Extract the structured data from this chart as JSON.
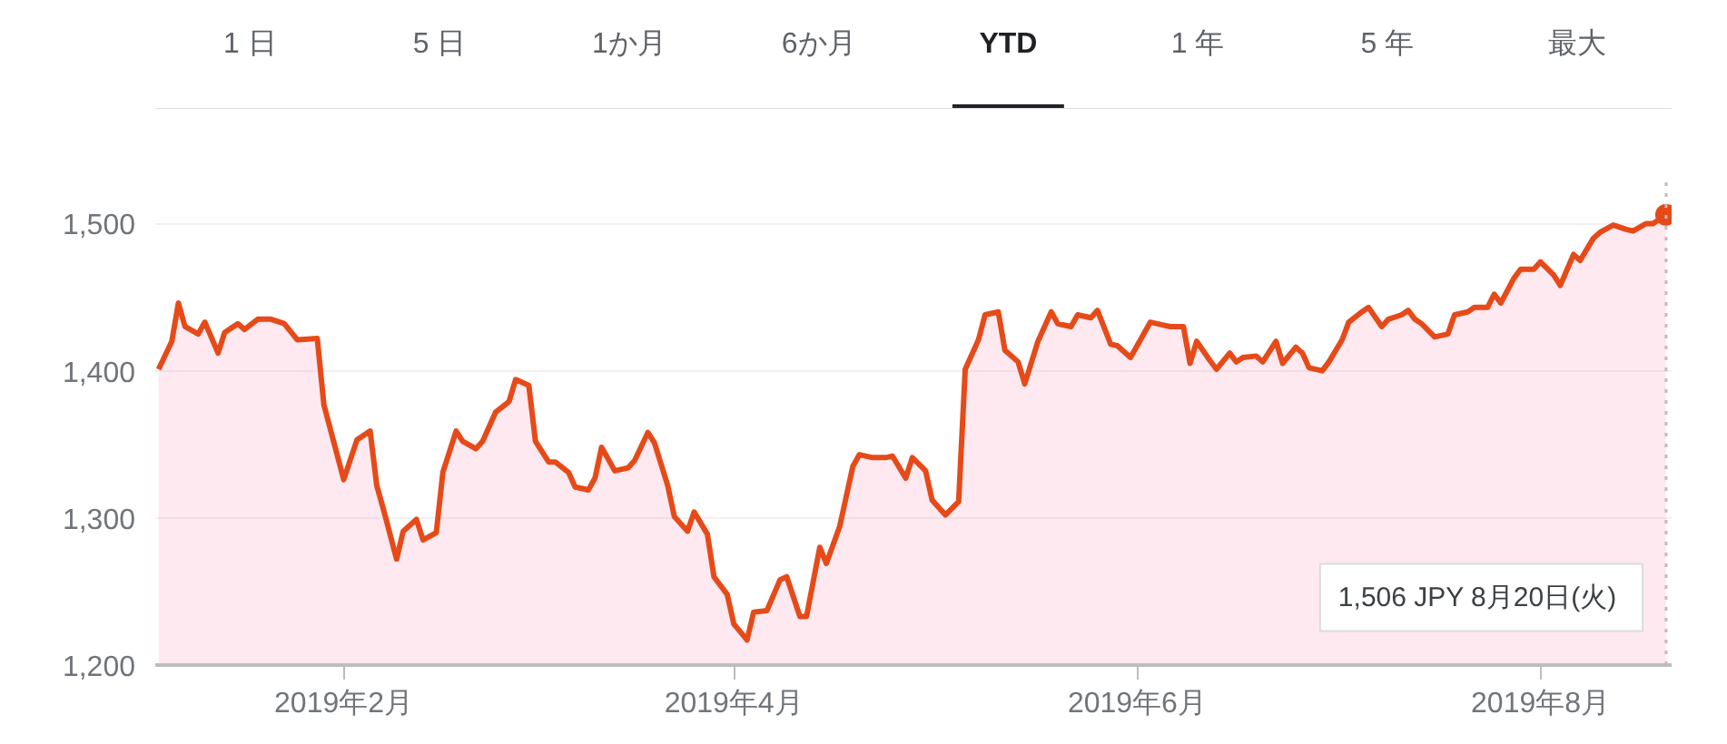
{
  "chart_data": {
    "type": "area",
    "x": [
      "2019-01-04",
      "2019-01-06",
      "2019-01-07",
      "2019-01-08",
      "2019-01-10",
      "2019-01-11",
      "2019-01-13",
      "2019-01-14",
      "2019-01-16",
      "2019-01-17",
      "2019-01-19",
      "2019-01-21",
      "2019-01-23",
      "2019-01-25",
      "2019-01-28",
      "2019-01-29",
      "2019-01-31",
      "2019-02-01",
      "2019-02-03",
      "2019-02-05",
      "2019-02-06",
      "2019-02-07",
      "2019-02-09",
      "2019-02-10",
      "2019-02-12",
      "2019-02-13",
      "2019-02-15",
      "2019-02-16",
      "2019-02-18",
      "2019-02-19",
      "2019-02-21",
      "2019-02-22",
      "2019-02-24",
      "2019-02-26",
      "2019-02-27",
      "2019-03-01",
      "2019-03-02",
      "2019-03-04",
      "2019-03-05",
      "2019-03-07",
      "2019-03-08",
      "2019-03-10",
      "2019-03-11",
      "2019-03-12",
      "2019-03-14",
      "2019-03-16",
      "2019-03-17",
      "2019-03-19",
      "2019-03-20",
      "2019-03-22",
      "2019-03-23",
      "2019-03-25",
      "2019-03-26",
      "2019-03-28",
      "2019-03-29",
      "2019-03-31",
      "2019-04-01",
      "2019-04-03",
      "2019-04-04",
      "2019-04-06",
      "2019-04-08",
      "2019-04-09",
      "2019-04-11",
      "2019-04-12",
      "2019-04-14",
      "2019-04-15",
      "2019-04-17",
      "2019-04-19",
      "2019-04-20",
      "2019-04-22",
      "2019-04-24",
      "2019-04-25",
      "2019-04-27",
      "2019-04-28",
      "2019-04-30",
      "2019-05-01",
      "2019-05-03",
      "2019-05-05",
      "2019-05-06",
      "2019-05-08",
      "2019-05-09",
      "2019-05-11",
      "2019-05-12",
      "2019-05-14",
      "2019-05-15",
      "2019-05-17",
      "2019-05-19",
      "2019-05-20",
      "2019-05-22",
      "2019-05-23",
      "2019-05-25",
      "2019-05-26",
      "2019-05-28",
      "2019-05-29",
      "2019-05-31",
      "2019-06-02",
      "2019-06-03",
      "2019-06-05",
      "2019-06-06",
      "2019-06-08",
      "2019-06-09",
      "2019-06-10",
      "2019-06-12",
      "2019-06-13",
      "2019-06-15",
      "2019-06-16",
      "2019-06-17",
      "2019-06-19",
      "2019-06-20",
      "2019-06-22",
      "2019-06-23",
      "2019-06-25",
      "2019-06-26",
      "2019-06-27",
      "2019-06-29",
      "2019-06-30",
      "2019-07-02",
      "2019-07-03",
      "2019-07-05",
      "2019-07-06",
      "2019-07-08",
      "2019-07-09",
      "2019-07-11",
      "2019-07-12",
      "2019-07-13",
      "2019-07-14",
      "2019-07-16",
      "2019-07-18",
      "2019-07-19",
      "2019-07-21",
      "2019-07-22",
      "2019-07-24",
      "2019-07-25",
      "2019-07-26",
      "2019-07-28",
      "2019-07-29",
      "2019-07-31",
      "2019-08-01",
      "2019-08-03",
      "2019-08-04",
      "2019-08-06",
      "2019-08-07",
      "2019-08-09",
      "2019-08-10",
      "2019-08-12",
      "2019-08-14",
      "2019-08-15",
      "2019-08-17",
      "2019-08-18",
      "2019-08-20"
    ],
    "series": [
      {
        "color": "#e64a19",
        "values": [
          1401,
          1420,
          1446,
          1430,
          1425,
          1433,
          1412,
          1426,
          1432,
          1428,
          1435,
          1435,
          1432,
          1421,
          1422,
          1377,
          1343,
          1326,
          1353,
          1359,
          1322,
          1306,
          1272,
          1291,
          1299,
          1285,
          1290,
          1331,
          1359,
          1352,
          1347,
          1352,
          1372,
          1379,
          1394,
          1390,
          1352,
          1338,
          1338,
          1331,
          1321,
          1319,
          1327,
          1348,
          1332,
          1334,
          1339,
          1358,
          1351,
          1322,
          1301,
          1291,
          1304,
          1289,
          1260,
          1248,
          1228,
          1217,
          1236,
          1237,
          1258,
          1260,
          1233,
          1233,
          1280,
          1269,
          1294,
          1335,
          1343,
          1341,
          1341,
          1342,
          1327,
          1341,
          1332,
          1312,
          1302,
          1311,
          1401,
          1421,
          1438,
          1440,
          1414,
          1406,
          1391,
          1420,
          1440,
          1432,
          1430,
          1438,
          1436,
          1441,
          1418,
          1417,
          1409,
          1425,
          1433,
          1431,
          1430,
          1430,
          1405,
          1420,
          1407,
          1401,
          1412,
          1406,
          1409,
          1410,
          1406,
          1420,
          1405,
          1416,
          1412,
          1402,
          1400,
          1406,
          1421,
          1433,
          1440,
          1443,
          1430,
          1435,
          1438,
          1441,
          1435,
          1432,
          1423,
          1425,
          1438,
          1440,
          1443,
          1443,
          1452,
          1446,
          1463,
          1469,
          1469,
          1474,
          1465,
          1458,
          1479,
          1475,
          1490,
          1494,
          1499,
          1496,
          1495,
          1500,
          1500,
          1506
        ]
      }
    ],
    "xlim": [
      "2019-01-03T12:00",
      "2019-08-20T20:00"
    ],
    "xticks": [
      {
        "value": "2019-02-01",
        "label": "2019年2月"
      },
      {
        "value": "2019-04-01",
        "label": "2019年4月"
      },
      {
        "value": "2019-06-01",
        "label": "2019年6月"
      },
      {
        "value": "2019-08-01",
        "label": "2019年8月"
      }
    ],
    "ylim": [
      1200,
      1528
    ],
    "yticks": [
      {
        "value": 1200,
        "label": "1,200"
      },
      {
        "value": 1300,
        "label": "1,300"
      },
      {
        "value": 1400,
        "label": "1,400"
      },
      {
        "value": 1500,
        "label": "1,500"
      }
    ],
    "grid": "y",
    "ref_lines": [
      {
        "axis": "x",
        "value": "2019-08-20",
        "line_style": "dotted",
        "color": "#bdbdbd"
      }
    ],
    "annotations": [
      "1 日",
      "5 日",
      "1か月",
      "6か月",
      "YTD",
      "1 年",
      "5 年",
      "最大",
      "1,506 JPY  8月20日(火)"
    ]
  }
}
